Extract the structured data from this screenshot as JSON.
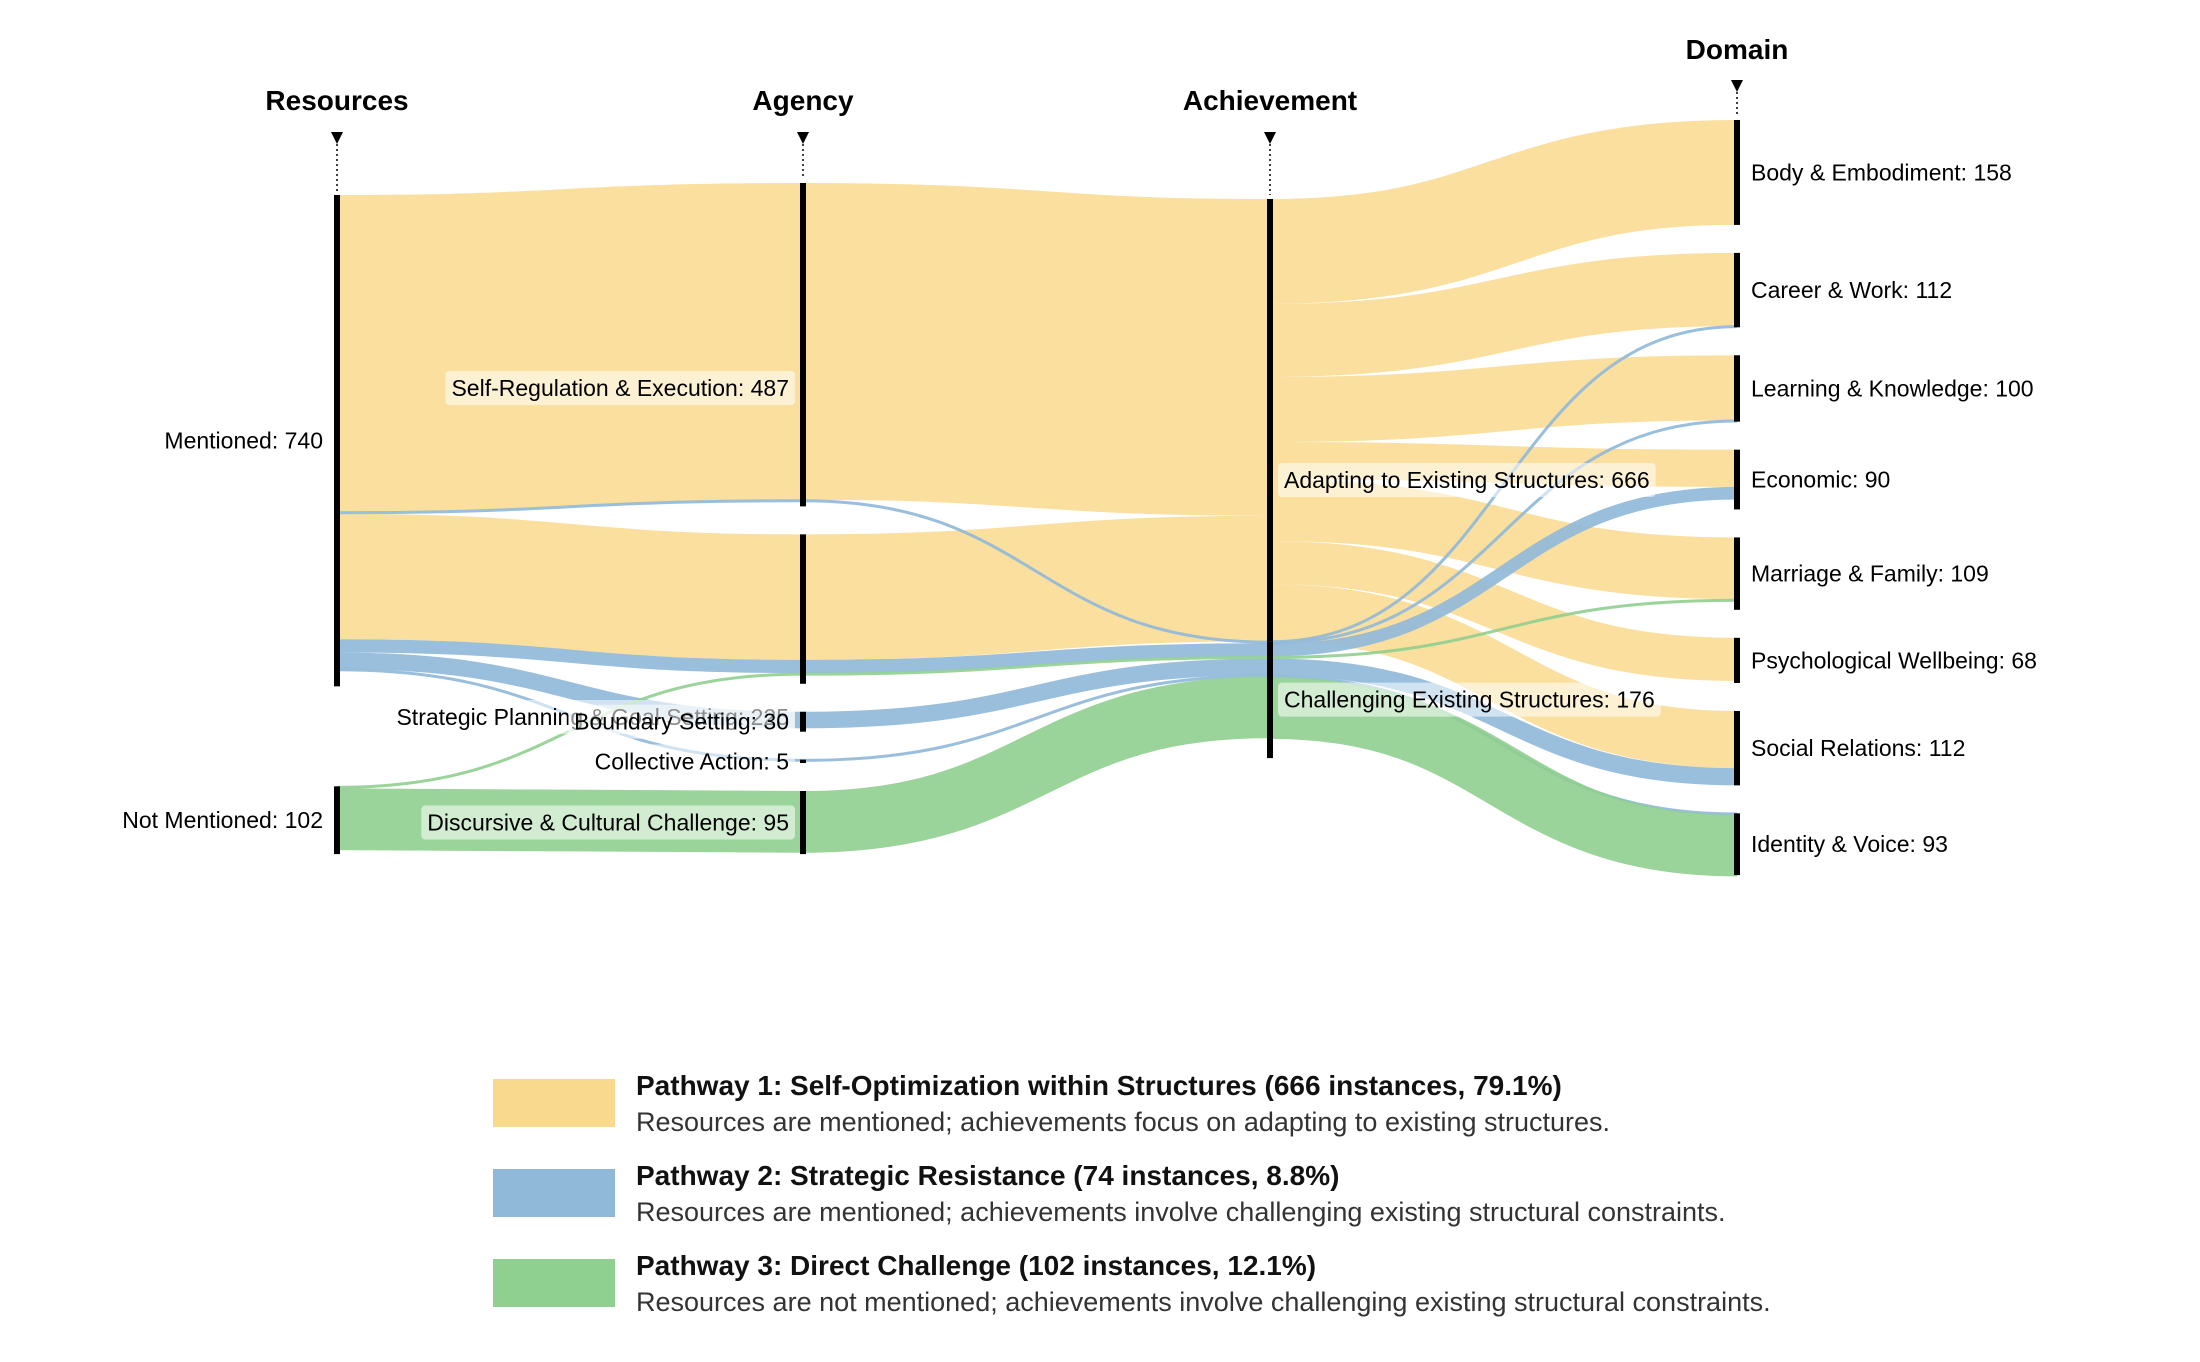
{
  "chart_data": {
    "type": "sankey",
    "columns": [
      "Resources",
      "Agency",
      "Achievement",
      "Domain"
    ],
    "colors": {
      "p1": "#f9d98e",
      "p2": "#8fb8d9",
      "p3": "#8fcf8f"
    },
    "nodes": [
      {
        "id": "mentioned",
        "label": "Mentioned: 740",
        "column": 0
      },
      {
        "id": "notmentioned",
        "label": "Not Mentioned: 102",
        "column": 0
      },
      {
        "id": "selfreg",
        "label": "Self-Regulation & Execution: 487",
        "column": 1
      },
      {
        "id": "strategic",
        "label": "Strategic Planning & Goal Setting: 225",
        "column": 1
      },
      {
        "id": "boundary",
        "label": "Boundary Setting: 30",
        "column": 1
      },
      {
        "id": "collective",
        "label": "Collective Action: 5",
        "column": 1
      },
      {
        "id": "discursive",
        "label": "Discursive & Cultural Challenge: 95",
        "column": 1
      },
      {
        "id": "adapting",
        "label": "Adapting to Existing Structures: 666",
        "column": 2
      },
      {
        "id": "challenging",
        "label": "Challenging Existing Structures: 176",
        "column": 2
      },
      {
        "id": "body",
        "label": "Body & Embodiment: 158",
        "column": 3
      },
      {
        "id": "career",
        "label": "Career & Work: 112",
        "column": 3
      },
      {
        "id": "learning",
        "label": "Learning & Knowledge: 100",
        "column": 3
      },
      {
        "id": "economic",
        "label": "Economic: 90",
        "column": 3
      },
      {
        "id": "marriage",
        "label": "Marriage & Family: 109",
        "column": 3
      },
      {
        "id": "psych",
        "label": "Psychological Wellbeing: 68",
        "column": 3
      },
      {
        "id": "social",
        "label": "Social Relations: 112",
        "column": 3
      },
      {
        "id": "identity",
        "label": "Identity & Voice: 93",
        "column": 3
      }
    ],
    "links": [
      {
        "source": "mentioned",
        "target": "selfreg",
        "value": 477,
        "pathway": "p1"
      },
      {
        "source": "mentioned",
        "target": "selfreg",
        "value": 3,
        "pathway": "p2"
      },
      {
        "source": "mentioned",
        "target": "strategic",
        "value": 189,
        "pathway": "p1"
      },
      {
        "source": "mentioned",
        "target": "strategic",
        "value": 20,
        "pathway": "p2"
      },
      {
        "source": "mentioned",
        "target": "boundary",
        "value": 25,
        "pathway": "p2"
      },
      {
        "source": "mentioned",
        "target": "collective",
        "value": 2,
        "pathway": "p2"
      },
      {
        "source": "notmentioned",
        "target": "strategic",
        "value": 3,
        "pathway": "p3"
      },
      {
        "source": "notmentioned",
        "target": "discursive",
        "value": 93,
        "pathway": "p3"
      },
      {
        "source": "selfreg",
        "target": "adapting",
        "value": 477,
        "pathway": "p1"
      },
      {
        "source": "selfreg",
        "target": "challenging",
        "value": 3,
        "pathway": "p2"
      },
      {
        "source": "strategic",
        "target": "adapting",
        "value": 189,
        "pathway": "p1"
      },
      {
        "source": "strategic",
        "target": "challenging",
        "value": 20,
        "pathway": "p2"
      },
      {
        "source": "strategic",
        "target": "challenging",
        "value": 3,
        "pathway": "p3"
      },
      {
        "source": "boundary",
        "target": "challenging",
        "value": 25,
        "pathway": "p2"
      },
      {
        "source": "collective",
        "target": "challenging",
        "value": 2,
        "pathway": "p2"
      },
      {
        "source": "discursive",
        "target": "challenging",
        "value": 93,
        "pathway": "p3"
      },
      {
        "source": "adapting",
        "target": "body",
        "value": 158,
        "pathway": "p1"
      },
      {
        "source": "adapting",
        "target": "career",
        "value": 110,
        "pathway": "p1"
      },
      {
        "source": "adapting",
        "target": "learning",
        "value": 98,
        "pathway": "p1"
      },
      {
        "source": "adapting",
        "target": "economic",
        "value": 56,
        "pathway": "p1"
      },
      {
        "source": "adapting",
        "target": "marriage",
        "value": 93,
        "pathway": "p1"
      },
      {
        "source": "adapting",
        "target": "psych",
        "value": 65,
        "pathway": "p1"
      },
      {
        "source": "adapting",
        "target": "social",
        "value": 86,
        "pathway": "p1"
      },
      {
        "source": "challenging",
        "target": "career",
        "value": 2,
        "pathway": "p2"
      },
      {
        "source": "challenging",
        "target": "learning",
        "value": 2,
        "pathway": "p2"
      },
      {
        "source": "challenging",
        "target": "economic",
        "value": 19,
        "pathway": "p2"
      },
      {
        "source": "challenging",
        "target": "marriage",
        "value": 3,
        "pathway": "p3"
      },
      {
        "source": "challenging",
        "target": "social",
        "value": 26,
        "pathway": "p2"
      },
      {
        "source": "challenging",
        "target": "identity",
        "value": 2,
        "pathway": "p2"
      },
      {
        "source": "challenging",
        "target": "identity",
        "value": 93,
        "pathway": "p3"
      }
    ]
  },
  "legend": [
    {
      "title": "Pathway 1: Self-Optimization within Structures (666 instances, 79.1%)",
      "desc": "Resources are mentioned; achievements focus on adapting to existing structures.",
      "color": "#f9d98e"
    },
    {
      "title": "Pathway 2: Strategic Resistance (74 instances, 8.8%)",
      "desc": "Resources are mentioned; achievements involve challenging existing structural constraints.",
      "color": "#8fb8d9"
    },
    {
      "title": "Pathway 3: Direct Challenge (102 instances, 12.1%)",
      "desc": "Resources are not mentioned; achievements involve challenging existing structural constraints.",
      "color": "#8fcf8f"
    }
  ]
}
